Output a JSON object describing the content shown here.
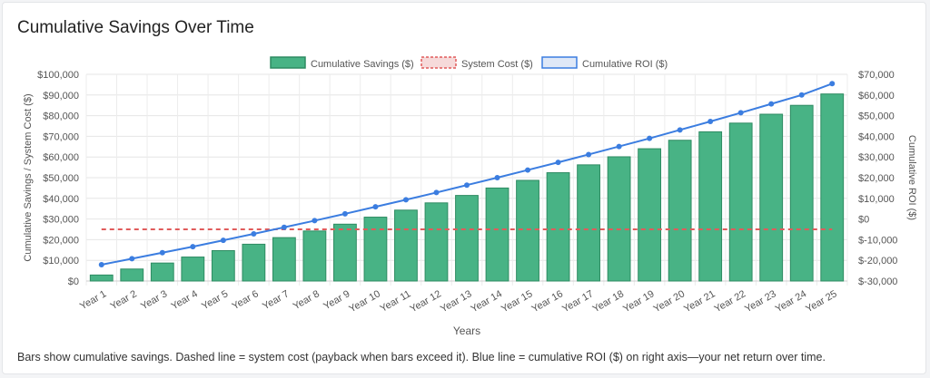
{
  "card": {
    "title": "Cumulative Savings Over Time",
    "caption": "Bars show cumulative savings. Dashed line = system cost (payback when bars exceed it). Blue line = cumulative ROI ($) on right axis—your net return over time."
  },
  "chart_data": {
    "type": "bar",
    "title": "",
    "xlabel": "Years",
    "ylabel": "Cumulative Savings / System Cost ($)",
    "y2label": "Cumulative ROI ($)",
    "ylim": [
      0,
      100000
    ],
    "y2lim": [
      -30000,
      70000
    ],
    "y_ticks": [
      "$0",
      "$10,000",
      "$20,000",
      "$30,000",
      "$40,000",
      "$50,000",
      "$60,000",
      "$70,000",
      "$80,000",
      "$90,000",
      "$100,000"
    ],
    "y2_ticks": [
      "$-30,000",
      "$-20,000",
      "$-10,000",
      "$0",
      "$10,000",
      "$20,000",
      "$30,000",
      "$40,000",
      "$50,000",
      "$60,000",
      "$70,000"
    ],
    "grid": true,
    "legend_position": "top-center",
    "categories": [
      "Year 1",
      "Year 2",
      "Year 3",
      "Year 4",
      "Year 5",
      "Year 6",
      "Year 7",
      "Year 8",
      "Year 9",
      "Year 10",
      "Year 11",
      "Year 12",
      "Year 13",
      "Year 14",
      "Year 15",
      "Year 16",
      "Year 17",
      "Year 18",
      "Year 19",
      "Year 20",
      "Year 21",
      "Year 22",
      "Year 23",
      "Year 24",
      "Year 25"
    ],
    "series": [
      {
        "name": "Cumulative Savings ($)",
        "kind": "bar",
        "axis": "left",
        "color": "#48b385",
        "border": "#2e8b62",
        "values": [
          2900,
          5800,
          8700,
          11600,
          14700,
          17800,
          21000,
          24200,
          27500,
          30900,
          34300,
          37800,
          41400,
          45000,
          48700,
          52400,
          56200,
          60100,
          64000,
          68100,
          72200,
          76400,
          80700,
          85000,
          90500
        ]
      },
      {
        "name": "System Cost ($)",
        "kind": "dashed-line",
        "axis": "left",
        "color": "#e05b5b",
        "values": [
          25000,
          25000,
          25000,
          25000,
          25000,
          25000,
          25000,
          25000,
          25000,
          25000,
          25000,
          25000,
          25000,
          25000,
          25000,
          25000,
          25000,
          25000,
          25000,
          25000,
          25000,
          25000,
          25000,
          25000,
          25000
        ]
      },
      {
        "name": "Cumulative ROI ($)",
        "kind": "line",
        "axis": "right",
        "color": "#3b7de0",
        "values": [
          -22100,
          -19200,
          -16300,
          -13400,
          -10300,
          -7200,
          -4000,
          -800,
          2500,
          5900,
          9300,
          12800,
          16400,
          20000,
          23700,
          27400,
          31200,
          35100,
          39000,
          43100,
          47200,
          51400,
          55700,
          60000,
          65500
        ]
      }
    ]
  }
}
